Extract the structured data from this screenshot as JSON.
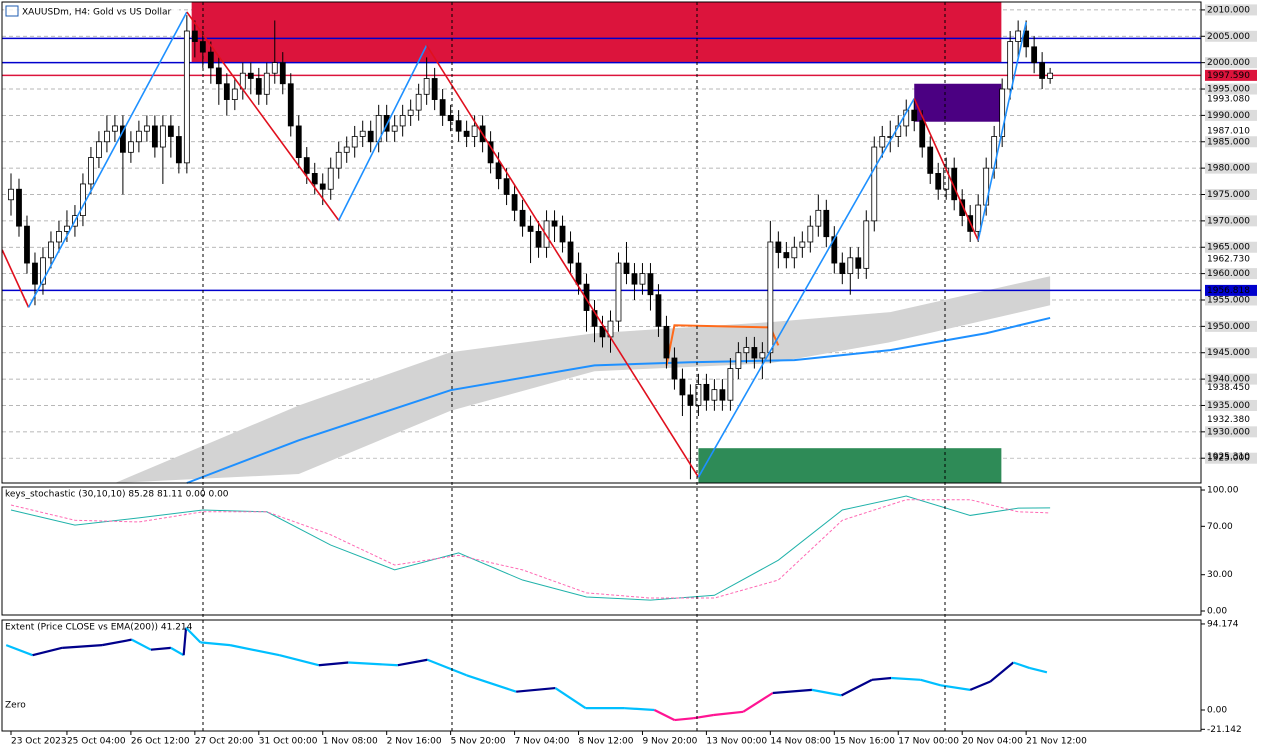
{
  "chart_data": [
    {
      "type": "candlestick",
      "title": "XAUUSDm, H4:  Gold vs US Dollar",
      "xlim": [
        -1.125,
        148.875
      ],
      "ylim": [
        1920.3,
        2011.5
      ],
      "xticks": [
        {
          "value": 0,
          "label": "23 Oct 2023"
        },
        {
          "value": 7,
          "label": "25 Oct 04:00"
        },
        {
          "value": 15,
          "label": "26 Oct 12:00"
        },
        {
          "value": 23,
          "label": "27 Oct 20:00"
        },
        {
          "value": 31,
          "label": "31 Oct 00:00"
        },
        {
          "value": 39,
          "label": "1 Nov 08:00"
        },
        {
          "value": 47,
          "label": "2 Nov 16:00"
        },
        {
          "value": 55,
          "label": "5 Nov 20:00"
        },
        {
          "value": 63,
          "label": "7 Nov 04:00"
        },
        {
          "value": 71,
          "label": "8 Nov 12:00"
        },
        {
          "value": 79,
          "label": "9 Nov 20:00"
        },
        {
          "value": 87,
          "label": "13 Nov 00:00"
        },
        {
          "value": 95,
          "label": "14 Nov 08:00"
        },
        {
          "value": 103,
          "label": "15 Nov 16:00"
        },
        {
          "value": 111,
          "label": "17 Nov 00:00"
        },
        {
          "value": 119,
          "label": "20 Nov 04:00"
        },
        {
          "value": 127,
          "label": "21 Nov 12:00"
        }
      ],
      "yticks": [
        {
          "value": 2010,
          "label": "2010.000"
        },
        {
          "value": 2005,
          "label": "2005.000"
        },
        {
          "value": 2000,
          "label": "2000.000"
        },
        {
          "value": 1995,
          "label": "1995.000"
        },
        {
          "value": 1990,
          "label": "1990.000"
        },
        {
          "value": 1985,
          "label": "1985.000"
        },
        {
          "value": 1980,
          "label": "1980.000"
        },
        {
          "value": 1975,
          "label": "1975.000"
        },
        {
          "value": 1970,
          "label": "1970.000"
        },
        {
          "value": 1965,
          "label": "1965.000"
        },
        {
          "value": 1960,
          "label": "1960.000"
        },
        {
          "value": 1955,
          "label": "1955.000"
        },
        {
          "value": 1950,
          "label": "1950.000"
        },
        {
          "value": 1945,
          "label": "1945.000"
        },
        {
          "value": 1940,
          "label": "1940.000"
        },
        {
          "value": 1935,
          "label": "1935.000"
        },
        {
          "value": 1930,
          "label": "1930.000"
        },
        {
          "value": 1925,
          "label": "1925.000"
        }
      ],
      "grid": true,
      "level_labels": [
        {
          "value": 1997.59,
          "label": "1997.590",
          "color": "#dc143c"
        },
        {
          "value": 1993.08,
          "label": "1993.080"
        },
        {
          "value": 1987.01,
          "label": "1987.010"
        },
        {
          "value": 1962.73,
          "label": "1962.730"
        },
        {
          "value": 1956.818,
          "label": "1956.818",
          "color": "#0000cd"
        },
        {
          "value": 1938.45,
          "label": "1938.450"
        },
        {
          "value": 1932.38,
          "label": "1932.380"
        },
        {
          "value": 1925.31,
          "label": "1925.310"
        }
      ],
      "up_color": "#ffffff",
      "down_color": "#000000",
      "open": [
        1974,
        1976,
        1969,
        1962,
        1958,
        1963,
        1966,
        1968,
        1969,
        1971,
        1977,
        1982,
        1985,
        1987,
        1988,
        1983,
        1985,
        1987,
        1988,
        1984,
        1988,
        1986,
        1981,
        2006,
        2004,
        2002,
        1999,
        1996,
        1993,
        1995,
        1998,
        1997,
        1994,
        1998,
        2000,
        1996,
        1988,
        1982,
        1979,
        1977,
        1976,
        1980,
        1983,
        1984,
        1986,
        1987,
        1985,
        1990,
        1987,
        1988,
        1990,
        1991,
        1994,
        1997,
        1993,
        1990,
        1989,
        1987,
        1986,
        1988,
        1985,
        1981,
        1978,
        1975,
        1972,
        1969,
        1968,
        1965,
        1970,
        1969,
        1966,
        1962,
        1958,
        1953,
        1950,
        1948,
        1951,
        1962,
        1960,
        1958,
        1960,
        1956,
        1950,
        1944,
        1940,
        1937,
        1935,
        1939,
        1936,
        1938,
        1936,
        1942,
        1945,
        1946,
        1944,
        1945,
        1966,
        1964,
        1963,
        1965,
        1966,
        1969,
        1972,
        1967,
        1962,
        1960,
        1963,
        1961,
        1970,
        1984,
        1986,
        1986,
        1988,
        1991,
        1989,
        1984,
        1979,
        1976,
        1980,
        1974,
        1971,
        1968,
        1973,
        1980,
        1986,
        1995,
        2004,
        2006,
        2003,
        2000,
        1997
      ],
      "high": [
        1979,
        1978,
        1971,
        1964,
        1965,
        1968,
        1970,
        1972,
        1973,
        1979,
        1984,
        1987,
        1990,
        1990,
        1990,
        1987,
        1989,
        1990,
        1990,
        1990,
        1990,
        1988,
        2009,
        2008,
        2006,
        2004,
        2001,
        1998,
        1997,
        2000,
        2000,
        1999,
        2000,
        2008,
        2002,
        1998,
        1990,
        1984,
        1981,
        1979,
        1982,
        1985,
        1986,
        1988,
        1989,
        1989,
        1992,
        1992,
        1990,
        1992,
        1993,
        1996,
        2001,
        1999,
        1995,
        1992,
        1991,
        1989,
        1990,
        1990,
        1987,
        1983,
        1980,
        1977,
        1974,
        1971,
        1970,
        1972,
        1972,
        1971,
        1968,
        1964,
        1960,
        1955,
        1952,
        1953,
        1964,
        1966,
        1962,
        1962,
        1962,
        1958,
        1952,
        1946,
        1942,
        1939,
        1941,
        1941,
        1940,
        1940,
        1944,
        1947,
        1948,
        1948,
        1947,
        1970,
        1968,
        1966,
        1967,
        1968,
        1971,
        1975,
        1974,
        1969,
        1964,
        1965,
        1965,
        1972,
        1986,
        1988,
        1989,
        1990,
        1993,
        1993,
        1991,
        1986,
        1981,
        1982,
        1982,
        1976,
        1973,
        1975,
        1982,
        1988,
        1997,
        2006,
        2008,
        2008,
        2005,
        2002,
        1999
      ],
      "low": [
        1971,
        1967,
        1960,
        1954,
        1956,
        1961,
        1964,
        1966,
        1967,
        1969,
        1975,
        1980,
        1983,
        1985,
        1975,
        1981,
        1983,
        1985,
        1982,
        1977,
        1982,
        1979,
        1979,
        2001,
        1999,
        1996,
        1992,
        1990,
        1991,
        1993,
        1994,
        1992,
        1992,
        1996,
        1994,
        1986,
        1980,
        1977,
        1975,
        1973,
        1974,
        1978,
        1981,
        1982,
        1984,
        1983,
        1983,
        1985,
        1985,
        1986,
        1988,
        1989,
        1992,
        1991,
        1988,
        1987,
        1985,
        1984,
        1984,
        1983,
        1979,
        1976,
        1973,
        1970,
        1967,
        1962,
        1963,
        1963,
        1966,
        1964,
        1960,
        1956,
        1949,
        1947,
        1946,
        1945,
        1949,
        1958,
        1955,
        1956,
        1953,
        1948,
        1942,
        1938,
        1933,
        1921,
        1933,
        1934,
        1934,
        1934,
        1934,
        1940,
        1943,
        1942,
        1940,
        1943,
        1961,
        1961,
        1961,
        1963,
        1964,
        1967,
        1965,
        1960,
        1958,
        1956,
        1959,
        1959,
        1968,
        1982,
        1983,
        1984,
        1986,
        1987,
        1982,
        1977,
        1974,
        1974,
        1972,
        1969,
        1966,
        1966,
        1971,
        1978,
        1984,
        1993,
        2001,
        2001,
        1998,
        1995,
        1996
      ],
      "close": [
        1976,
        1969,
        1962,
        1958,
        1963,
        1966,
        1968,
        1969,
        1971,
        1977,
        1982,
        1985,
        1987,
        1988,
        1983,
        1985,
        1987,
        1988,
        1984,
        1988,
        1986,
        1981,
        2006,
        2004,
        2002,
        1999,
        1996,
        1993,
        1995,
        1998,
        1997,
        1994,
        1998,
        2000,
        1996,
        1988,
        1982,
        1979,
        1977,
        1976,
        1980,
        1983,
        1984,
        1986,
        1987,
        1985,
        1990,
        1987,
        1988,
        1990,
        1991,
        1994,
        1997,
        1993,
        1990,
        1989,
        1987,
        1986,
        1988,
        1985,
        1981,
        1978,
        1975,
        1972,
        1969,
        1968,
        1965,
        1970,
        1969,
        1966,
        1962,
        1958,
        1953,
        1950,
        1948,
        1951,
        1962,
        1960,
        1958,
        1960,
        1956,
        1950,
        1944,
        1940,
        1937,
        1935,
        1939,
        1936,
        1938,
        1936,
        1942,
        1945,
        1946,
        1944,
        1945,
        1966,
        1964,
        1963,
        1965,
        1966,
        1969,
        1972,
        1967,
        1962,
        1960,
        1963,
        1961,
        1970,
        1984,
        1986,
        1986,
        1988,
        1991,
        1989,
        1984,
        1979,
        1976,
        1980,
        1974,
        1971,
        1968,
        1973,
        1980,
        1986,
        1995,
        2004,
        2006,
        2003,
        2000,
        1997,
        1998
      ],
      "rects": [
        {
          "x": [
            22.6,
            123.9
          ],
          "y": [
            2000.0,
            2011.5
          ],
          "color": "#dc143c"
        },
        {
          "x": [
            113,
            123.9
          ],
          "y": [
            1988.8,
            1996.0
          ],
          "color": "#4b0082"
        },
        {
          "x": [
            86,
            123.9
          ],
          "y": [
            1920.3,
            1926.9
          ],
          "color": "#2e8b57"
        }
      ],
      "band": {
        "color": "#d3d3d3",
        "x": [
          13,
          36,
          55,
          73,
          95,
          110,
          130
        ],
        "upper": [
          1920.3,
          1935.0,
          1945.1,
          1948.7,
          1950.8,
          1952.7,
          1959.5
        ],
        "lower": [
          1920.3,
          1922.0,
          1934.0,
          1941.5,
          1943.0,
          1947.0,
          1954.0
        ]
      },
      "lines": [
        {
          "color": "#1e90ff",
          "x": [
            22,
            36,
            55,
            73,
            85,
            98,
            110,
            122,
            130
          ],
          "values": [
            1920.3,
            1928.4,
            1937.9,
            1942.6,
            1943.2,
            1943.6,
            1945.5,
            1948.7,
            1951.6
          ]
        },
        {
          "color": "#ff6a1a",
          "x": [
            82,
            83,
            95,
            96
          ],
          "values": [
            1942.6,
            1950.2,
            1949.8,
            1946.4
          ]
        }
      ],
      "hlines": [
        {
          "value": 2004.6,
          "color": "#0000cd"
        },
        {
          "value": 2000.0,
          "color": "#0000cd"
        },
        {
          "value": 1997.59,
          "color": "#dc143c"
        },
        {
          "value": 1956.818,
          "color": "#0000cd"
        }
      ],
      "zigzag": {
        "color_up": "#1e90ff",
        "color_down": "#e0101e",
        "x": [
          -1.1,
          2.2,
          22,
          26.5,
          41,
          52,
          86,
          113,
          121,
          127
        ],
        "values": [
          1964.5,
          1953.6,
          2009.6,
          2000.1,
          1970.1,
          2003.3,
          1921.4,
          1993.2,
          1966.3,
          2007.7
        ]
      }
    },
    {
      "type": "line",
      "title": "keys_stochastic (30,10,10) 85.28 81.11 0.00 0.00",
      "ylim": [
        -3.3,
        102.5
      ],
      "yticks": [
        {
          "value": 100,
          "label": "100.00"
        },
        {
          "value": 70,
          "label": "70.00"
        },
        {
          "value": 30,
          "label": "30.00"
        },
        {
          "value": 0,
          "label": "0.00"
        }
      ],
      "x": [
        0,
        8,
        16,
        24,
        32,
        40,
        48,
        56,
        64,
        72,
        80,
        88,
        96,
        104,
        112,
        120,
        126,
        130
      ],
      "series": [
        {
          "color": "#20b2aa",
          "values": [
            83.5,
            71,
            77,
            83.5,
            82,
            54.5,
            34,
            48,
            25.6,
            11.6,
            9,
            13,
            42,
            83.5,
            95,
            79,
            85,
            85.28
          ]
        },
        {
          "color": "#ff69b4",
          "dash": true,
          "values": [
            87.6,
            75,
            73.6,
            82,
            82,
            63,
            38,
            46,
            34,
            15,
            10.7,
            10.7,
            25.6,
            75,
            92,
            92,
            82,
            81.11
          ]
        }
      ]
    },
    {
      "type": "line",
      "title": "Extent (Price CLOSE vs EMA(200)) 41.214",
      "annotation": "Zero",
      "ylim": [
        -23,
        98.5
      ],
      "yticks": [
        94.174,
        {
          "value": 0,
          "label": "0.00"
        },
        -21.142
      ],
      "x": [
        -0.6,
        2.7,
        6.4,
        11.4,
        15.1,
        17.5,
        20,
        21.6,
        21.9,
        23.7,
        27.4,
        33.6,
        38.5,
        42.2,
        48.4,
        52.1,
        57,
        63.2,
        68.1,
        71.9,
        76.8,
        80.5,
        83,
        85.4,
        87.9,
        91.6,
        95.3,
        100.2,
        103.9,
        107.7,
        110.1,
        113.8,
        116.3,
        120,
        122.5,
        125.4,
        127.4,
        129.6
      ],
      "series": [
        {
          "color_up": "#00008b",
          "color_down": "#00bfff",
          "color_negative": "#ff1493",
          "values": [
            71,
            60,
            68,
            71,
            77,
            66,
            68,
            60,
            90,
            74,
            71,
            60,
            49,
            52,
            49,
            55,
            38,
            20,
            24,
            2,
            2,
            0,
            -11,
            -9,
            -5.5,
            -2,
            18.6,
            22,
            16,
            33,
            35,
            33,
            27,
            22,
            31,
            52,
            46,
            41.214
          ]
        }
      ]
    }
  ]
}
